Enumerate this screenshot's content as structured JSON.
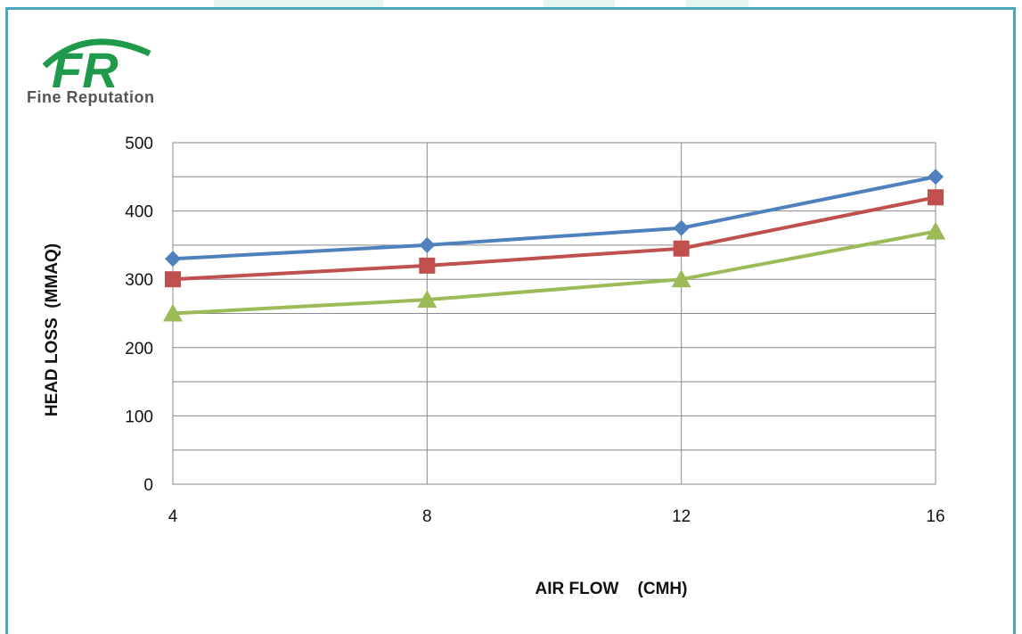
{
  "logo": {
    "text": "Fine Reputation",
    "mark": "FR"
  },
  "colors": {
    "frame": "#4aa6bf",
    "logo_green": "#1f9a4a"
  },
  "chart_data": {
    "type": "line",
    "x": [
      4,
      8,
      12,
      16
    ],
    "xlabel": "AIR FLOW    (CMH)",
    "ylabel": "HEAD LOSS  (MMAQ)",
    "ylim": [
      0,
      500
    ],
    "yticks": [
      0,
      100,
      200,
      300,
      400,
      500
    ],
    "grid": true,
    "series": [
      {
        "values": [
          330,
          350,
          375,
          450
        ],
        "color": "#4f81bd",
        "marker": "diamond"
      },
      {
        "values": [
          300,
          320,
          345,
          420
        ],
        "color": "#c0504d",
        "marker": "square"
      },
      {
        "values": [
          250,
          270,
          300,
          370
        ],
        "color": "#9bbb59",
        "marker": "triangle"
      }
    ]
  }
}
